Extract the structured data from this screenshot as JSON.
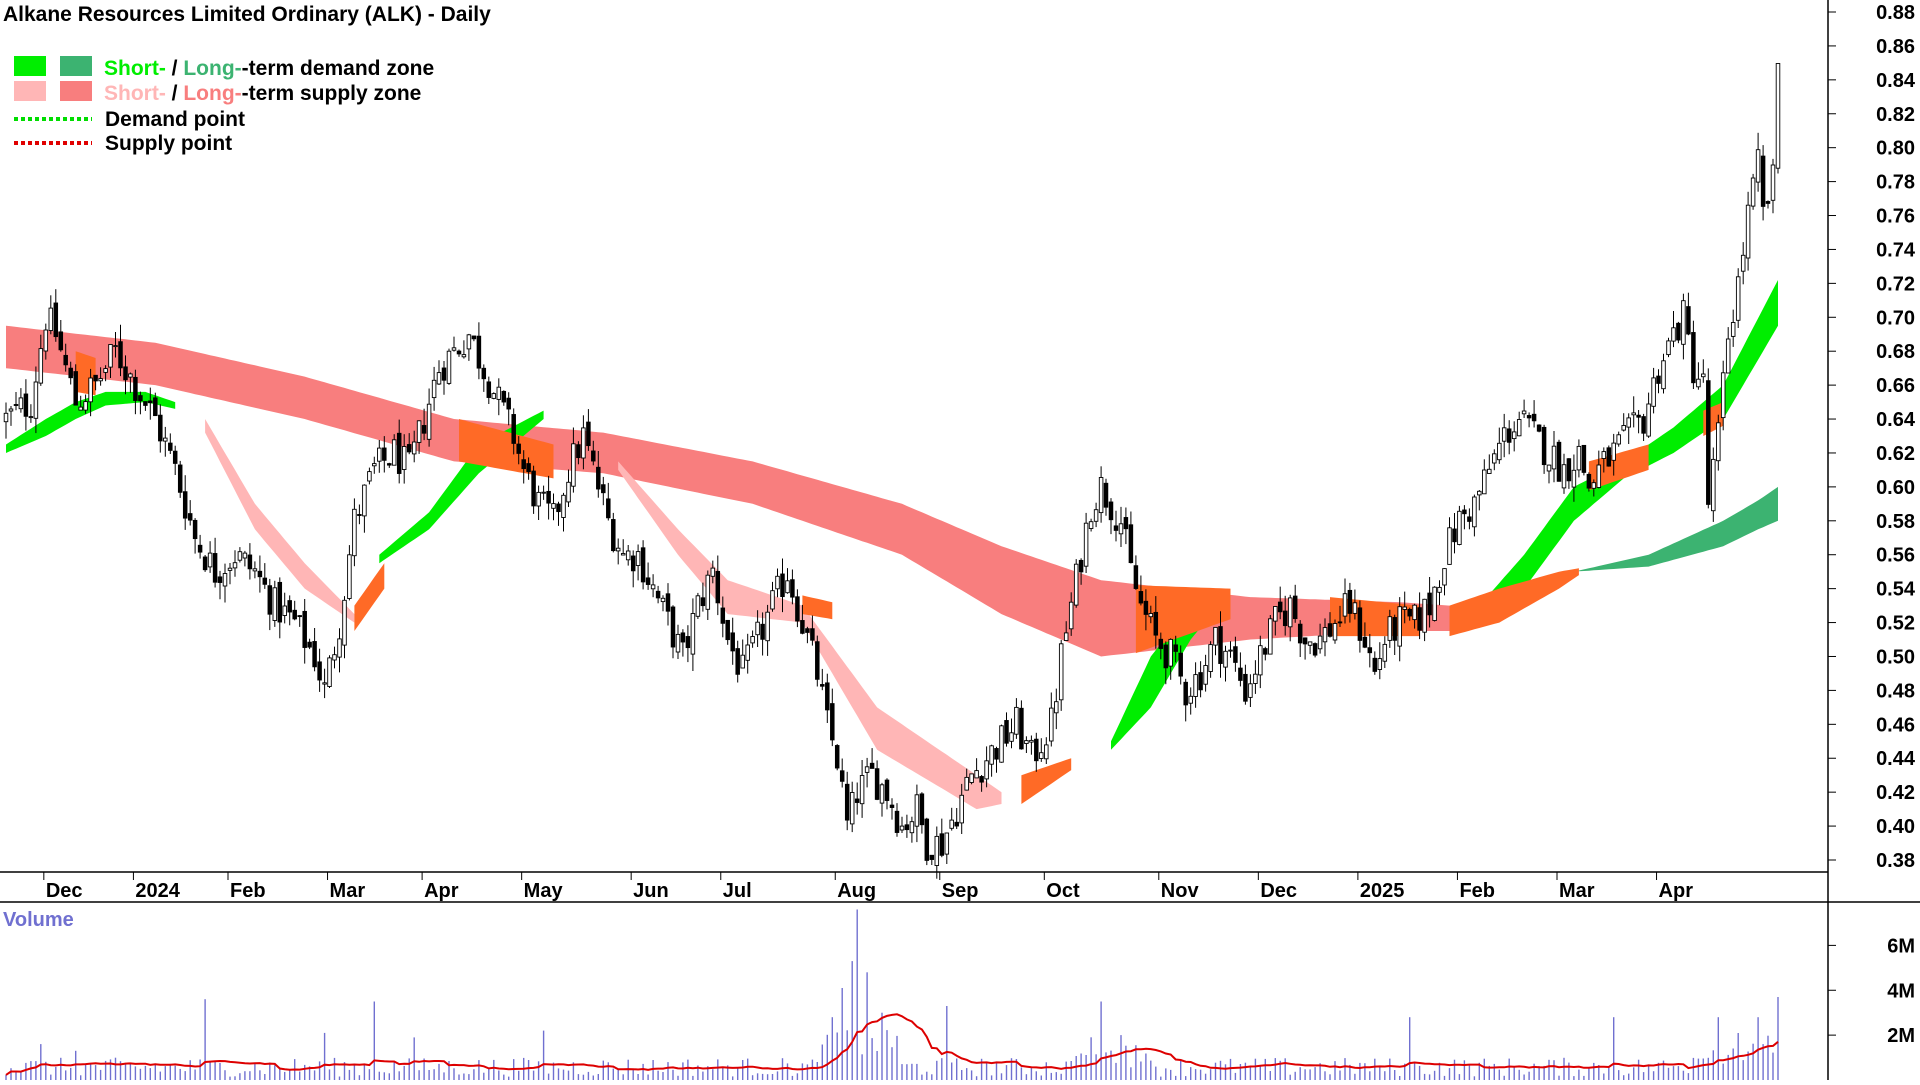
{
  "chart_data": {
    "type": "candlestick",
    "title": "Alkane Resources Limited Ordinary (ALK) - Daily",
    "legend": {
      "position": "top-left",
      "items": [
        {
          "short_label": "Short-",
          "separator": " / ",
          "long_label": "Long-",
          "suffix": "-term demand zone",
          "short_color": "#00ee00",
          "long_color": "#3cb371"
        },
        {
          "short_label": "Short-",
          "separator": " / ",
          "long_label": "Long-",
          "suffix": "-term supply zone",
          "short_color": "#ffb6b6",
          "long_color": "#f87e7e"
        },
        {
          "label": "Demand point",
          "color": "#00dd00"
        },
        {
          "label": "Supply point",
          "color": "#e00000"
        }
      ]
    },
    "x_axis": {
      "labels": [
        "Dec",
        "2024",
        "Feb",
        "Mar",
        "Apr",
        "May",
        "Jun",
        "Jul",
        "Aug",
        "Sep",
        "Oct",
        "Nov",
        "Dec",
        "2025",
        "Feb",
        "Mar",
        "Apr"
      ],
      "label_positions_trading_day": [
        8,
        26,
        45,
        65,
        84,
        104,
        126,
        144,
        167,
        188,
        209,
        232,
        252,
        272,
        292,
        312,
        332
      ]
    },
    "y_axis": {
      "side": "right",
      "min": 0.37,
      "max": 0.885,
      "ticks": [
        0.38,
        0.4,
        0.42,
        0.44,
        0.46,
        0.48,
        0.5,
        0.52,
        0.54,
        0.56,
        0.58,
        0.6,
        0.62,
        0.64,
        0.66,
        0.68,
        0.7,
        0.72,
        0.74,
        0.76,
        0.78,
        0.8,
        0.82,
        0.84,
        0.86,
        0.88
      ],
      "tick_labels": [
        "0.38",
        "0.40",
        "0.42",
        "0.44",
        "0.46",
        "0.48",
        "0.50",
        "0.52",
        "0.54",
        "0.56",
        "0.58",
        "0.60",
        "0.62",
        "0.64",
        "0.66",
        "0.68",
        "0.70",
        "0.72",
        "0.74",
        "0.76",
        "0.78",
        "0.80",
        "0.82",
        "0.84",
        "0.86",
        "0.88"
      ]
    },
    "price_anchors": [
      [
        0,
        0.64
      ],
      [
        5,
        0.65
      ],
      [
        8,
        0.7
      ],
      [
        10,
        0.69
      ],
      [
        14,
        0.65
      ],
      [
        18,
        0.66
      ],
      [
        22,
        0.68
      ],
      [
        26,
        0.66
      ],
      [
        30,
        0.64
      ],
      [
        34,
        0.61
      ],
      [
        38,
        0.57
      ],
      [
        42,
        0.55
      ],
      [
        46,
        0.56
      ],
      [
        50,
        0.55
      ],
      [
        54,
        0.53
      ],
      [
        58,
        0.52
      ],
      [
        62,
        0.5
      ],
      [
        64,
        0.48
      ],
      [
        67,
        0.52
      ],
      [
        70,
        0.58
      ],
      [
        74,
        0.61
      ],
      [
        78,
        0.62
      ],
      [
        81,
        0.61
      ],
      [
        84,
        0.64
      ],
      [
        87,
        0.67
      ],
      [
        90,
        0.68
      ],
      [
        93,
        0.69
      ],
      [
        96,
        0.67
      ],
      [
        99,
        0.65
      ],
      [
        102,
        0.63
      ],
      [
        104,
        0.61
      ],
      [
        107,
        0.59
      ],
      [
        110,
        0.58
      ],
      [
        113,
        0.61
      ],
      [
        116,
        0.63
      ],
      [
        118,
        0.61
      ],
      [
        121,
        0.58
      ],
      [
        124,
        0.56
      ],
      [
        127,
        0.56
      ],
      [
        130,
        0.54
      ],
      [
        133,
        0.52
      ],
      [
        136,
        0.5
      ],
      [
        139,
        0.53
      ],
      [
        142,
        0.55
      ],
      [
        145,
        0.51
      ],
      [
        148,
        0.49
      ],
      [
        151,
        0.51
      ],
      [
        154,
        0.53
      ],
      [
        157,
        0.55
      ],
      [
        160,
        0.52
      ],
      [
        163,
        0.49
      ],
      [
        165,
        0.46
      ],
      [
        167,
        0.44
      ],
      [
        169,
        0.4
      ],
      [
        171,
        0.42
      ],
      [
        174,
        0.43
      ],
      [
        177,
        0.42
      ],
      [
        180,
        0.4
      ],
      [
        183,
        0.41
      ],
      [
        185,
        0.39
      ],
      [
        188,
        0.39
      ],
      [
        191,
        0.41
      ],
      [
        194,
        0.43
      ],
      [
        197,
        0.44
      ],
      [
        200,
        0.45
      ],
      [
        203,
        0.46
      ],
      [
        206,
        0.44
      ],
      [
        208,
        0.45
      ],
      [
        210,
        0.46
      ],
      [
        212,
        0.5
      ],
      [
        214,
        0.53
      ],
      [
        216,
        0.56
      ],
      [
        218,
        0.59
      ],
      [
        220,
        0.6
      ],
      [
        222,
        0.59
      ],
      [
        224,
        0.58
      ],
      [
        226,
        0.55
      ],
      [
        228,
        0.53
      ],
      [
        231,
        0.51
      ],
      [
        234,
        0.5
      ],
      [
        237,
        0.48
      ],
      [
        240,
        0.49
      ],
      [
        243,
        0.51
      ],
      [
        246,
        0.5
      ],
      [
        249,
        0.48
      ],
      [
        252,
        0.5
      ],
      [
        255,
        0.52
      ],
      [
        258,
        0.53
      ],
      [
        261,
        0.51
      ],
      [
        264,
        0.51
      ],
      [
        267,
        0.52
      ],
      [
        270,
        0.53
      ],
      [
        273,
        0.51
      ],
      [
        275,
        0.49
      ],
      [
        277,
        0.51
      ],
      [
        280,
        0.52
      ],
      [
        283,
        0.52
      ],
      [
        286,
        0.53
      ],
      [
        289,
        0.56
      ],
      [
        292,
        0.58
      ],
      [
        295,
        0.59
      ],
      [
        298,
        0.61
      ],
      [
        301,
        0.63
      ],
      [
        304,
        0.64
      ],
      [
        307,
        0.63
      ],
      [
        310,
        0.62
      ],
      [
        313,
        0.61
      ],
      [
        316,
        0.62
      ],
      [
        318,
        0.6
      ],
      [
        320,
        0.61
      ],
      [
        323,
        0.62
      ],
      [
        326,
        0.63
      ],
      [
        329,
        0.64
      ],
      [
        332,
        0.67
      ],
      [
        335,
        0.69
      ],
      [
        337,
        0.7
      ],
      [
        339,
        0.67
      ],
      [
        341,
        0.66
      ],
      [
        342,
        0.59
      ],
      [
        344,
        0.63
      ],
      [
        346,
        0.69
      ],
      [
        348,
        0.72
      ],
      [
        350,
        0.76
      ],
      [
        352,
        0.79
      ],
      [
        353,
        0.76
      ],
      [
        355,
        0.78
      ],
      [
        356,
        0.85
      ]
    ],
    "trading_days": 357,
    "supply_zone_long": {
      "color": "#f87e7e",
      "upper": [
        [
          0,
          0.695
        ],
        [
          30,
          0.685
        ],
        [
          60,
          0.665
        ],
        [
          90,
          0.64
        ],
        [
          120,
          0.632
        ],
        [
          150,
          0.615
        ],
        [
          180,
          0.59
        ],
        [
          200,
          0.565
        ],
        [
          220,
          0.545
        ],
        [
          250,
          0.535
        ],
        [
          280,
          0.532
        ],
        [
          290,
          0.53
        ]
      ],
      "lower": [
        [
          0,
          0.67
        ],
        [
          30,
          0.66
        ],
        [
          60,
          0.64
        ],
        [
          90,
          0.615
        ],
        [
          120,
          0.608
        ],
        [
          150,
          0.59
        ],
        [
          180,
          0.56
        ],
        [
          200,
          0.525
        ],
        [
          220,
          0.5
        ],
        [
          250,
          0.51
        ],
        [
          280,
          0.515
        ],
        [
          290,
          0.515
        ]
      ]
    },
    "supply_zone_short": {
      "color": "#ffb6b6",
      "segments": [
        {
          "upper": [
            [
              40,
              0.64
            ],
            [
              50,
              0.59
            ],
            [
              60,
              0.555
            ],
            [
              70,
              0.525
            ]
          ],
          "lower": [
            [
              40,
              0.632
            ],
            [
              50,
              0.575
            ],
            [
              60,
              0.54
            ],
            [
              70,
              0.52
            ]
          ]
        },
        {
          "upper": [
            [
              123,
              0.615
            ],
            [
              135,
              0.575
            ],
            [
              145,
              0.545
            ],
            [
              160,
              0.53
            ],
            [
              175,
              0.47
            ],
            [
              195,
              0.43
            ],
            [
              200,
              0.42
            ]
          ],
          "lower": [
            [
              123,
              0.61
            ],
            [
              135,
              0.56
            ],
            [
              145,
              0.525
            ],
            [
              160,
              0.52
            ],
            [
              175,
              0.445
            ],
            [
              195,
              0.41
            ],
            [
              200,
              0.413
            ]
          ]
        }
      ]
    },
    "demand_zone_long": {
      "color": "#3cb371",
      "upper": [
        [
          315,
          0.55
        ],
        [
          330,
          0.56
        ],
        [
          345,
          0.58
        ],
        [
          352,
          0.592
        ],
        [
          356,
          0.6
        ]
      ],
      "lower": [
        [
          315,
          0.55
        ],
        [
          330,
          0.553
        ],
        [
          345,
          0.565
        ],
        [
          352,
          0.575
        ],
        [
          356,
          0.58
        ]
      ]
    },
    "demand_zone_short": {
      "color": "#00ee00",
      "segments": [
        {
          "upper": [
            [
              0,
              0.625
            ],
            [
              8,
              0.64
            ],
            [
              14,
              0.65
            ],
            [
              20,
              0.656
            ],
            [
              28,
              0.656
            ],
            [
              34,
              0.65
            ]
          ],
          "lower": [
            [
              0,
              0.62
            ],
            [
              8,
              0.63
            ],
            [
              14,
              0.64
            ],
            [
              20,
              0.648
            ],
            [
              28,
              0.65
            ],
            [
              34,
              0.646
            ]
          ]
        },
        {
          "upper": [
            [
              75,
              0.56
            ],
            [
              85,
              0.585
            ],
            [
              95,
              0.625
            ],
            [
              108,
              0.645
            ]
          ],
          "lower": [
            [
              75,
              0.555
            ],
            [
              85,
              0.575
            ],
            [
              95,
              0.608
            ],
            [
              108,
              0.64
            ]
          ]
        },
        {
          "upper": [
            [
              222,
              0.45
            ],
            [
              230,
              0.5
            ],
            [
              238,
              0.53
            ],
            [
              245,
              0.54
            ]
          ],
          "lower": [
            [
              222,
              0.445
            ],
            [
              230,
              0.47
            ],
            [
              238,
              0.51
            ],
            [
              245,
              0.535
            ]
          ]
        },
        {
          "upper": [
            [
              296,
              0.53
            ],
            [
              305,
              0.56
            ],
            [
              315,
              0.6
            ],
            [
              325,
              0.615
            ],
            [
              335,
              0.635
            ],
            [
              345,
              0.66
            ],
            [
              356,
              0.722
            ]
          ],
          "lower": [
            [
              296,
              0.52
            ],
            [
              305,
              0.54
            ],
            [
              315,
              0.58
            ],
            [
              325,
              0.605
            ],
            [
              335,
              0.62
            ],
            [
              345,
              0.64
            ],
            [
              356,
              0.695
            ]
          ]
        }
      ]
    },
    "transition_zones": {
      "color": "#ff6a26",
      "segments": [
        {
          "upper": [
            [
              14,
              0.68
            ],
            [
              18,
              0.676
            ]
          ],
          "lower": [
            [
              14,
              0.656
            ],
            [
              18,
              0.654
            ]
          ]
        },
        {
          "upper": [
            [
              70,
              0.53
            ],
            [
              76,
              0.555
            ]
          ],
          "lower": [
            [
              70,
              0.515
            ],
            [
              76,
              0.54
            ]
          ]
        },
        {
          "upper": [
            [
              91,
              0.64
            ],
            [
              110,
              0.625
            ]
          ],
          "lower": [
            [
              91,
              0.615
            ],
            [
              110,
              0.605
            ]
          ]
        },
        {
          "upper": [
            [
              160,
              0.536
            ],
            [
              166,
              0.532
            ]
          ],
          "lower": [
            [
              160,
              0.525
            ],
            [
              166,
              0.522
            ]
          ]
        },
        {
          "upper": [
            [
              204,
              0.43
            ],
            [
              214,
              0.44
            ]
          ],
          "lower": [
            [
              204,
              0.413
            ],
            [
              214,
              0.433
            ]
          ]
        },
        {
          "upper": [
            [
              227,
              0.542
            ],
            [
              246,
              0.54
            ]
          ],
          "lower": [
            [
              227,
              0.502
            ],
            [
              246,
              0.522
            ]
          ]
        },
        {
          "upper": [
            [
              266,
              0.535
            ],
            [
              284,
              0.53
            ]
          ],
          "lower": [
            [
              266,
              0.512
            ],
            [
              284,
              0.512
            ]
          ]
        },
        {
          "upper": [
            [
              290,
              0.53
            ],
            [
              300,
              0.54
            ],
            [
              312,
              0.55
            ],
            [
              316,
              0.552
            ]
          ],
          "lower": [
            [
              290,
              0.512
            ],
            [
              300,
              0.52
            ],
            [
              312,
              0.54
            ],
            [
              316,
              0.548
            ]
          ]
        },
        {
          "upper": [
            [
              318,
              0.615
            ],
            [
              330,
              0.625
            ]
          ],
          "lower": [
            [
              318,
              0.598
            ],
            [
              330,
              0.61
            ]
          ]
        },
        {
          "upper": [
            [
              341,
              0.645
            ],
            [
              345,
              0.65
            ]
          ],
          "lower": [
            [
              341,
              0.63
            ],
            [
              345,
              0.636
            ]
          ]
        }
      ]
    },
    "volume": {
      "label": "Volume",
      "bar_color": "#7070d0",
      "ma_color": "#dd0000",
      "max": 7.8,
      "ticks": [
        2,
        4,
        6
      ],
      "tick_labels": [
        "2M",
        "4M",
        "6M"
      ],
      "spikes": [
        [
          7,
          1.6
        ],
        [
          14,
          1.3
        ],
        [
          40,
          3.6
        ],
        [
          64,
          2.1
        ],
        [
          74,
          3.5
        ],
        [
          82,
          1.9
        ],
        [
          108,
          2.2
        ],
        [
          166,
          2.8
        ],
        [
          168,
          4.1
        ],
        [
          170,
          5.3
        ],
        [
          171,
          7.6
        ],
        [
          173,
          4.8
        ],
        [
          176,
          3.0
        ],
        [
          189,
          3.3
        ],
        [
          220,
          3.5
        ],
        [
          224,
          2.0
        ],
        [
          282,
          2.8
        ],
        [
          323,
          2.8
        ],
        [
          344,
          2.8
        ],
        [
          352,
          2.8
        ],
        [
          356,
          3.7
        ]
      ]
    }
  }
}
